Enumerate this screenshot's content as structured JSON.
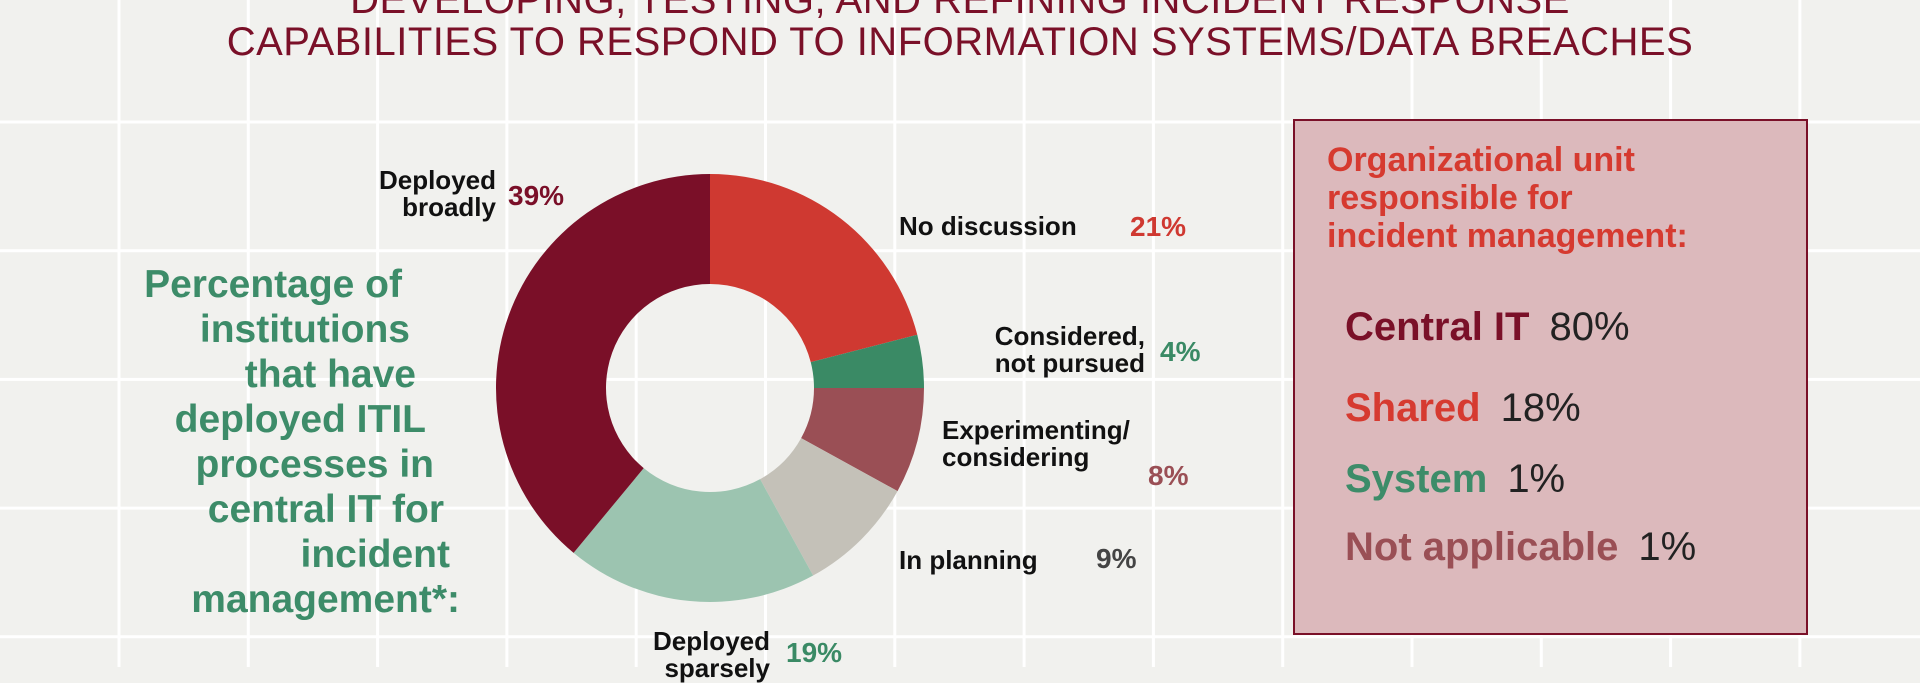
{
  "title": {
    "line1": "DEVELOPING, TESTING, AND REFINING INCIDENT RESPONSE",
    "line2": "CAPABILITIES TO RESPOND TO INFORMATION SYSTEMS/DATA BREACHES"
  },
  "left_caption": [
    "Percentage of",
    "institutions",
    "that have",
    "deployed ITIL",
    "processes in",
    "central IT for",
    "incident",
    "management*:"
  ],
  "chart_data": {
    "type": "pie",
    "donut": true,
    "title": "Percentage of institutions that have deployed ITIL processes in central IT for incident management*:",
    "slices": [
      {
        "label": "No discussion",
        "value": 21,
        "pct_text": "21%",
        "color": "#cf3931"
      },
      {
        "label": "Considered, not pursued",
        "label_lines": [
          "Considered,",
          "not pursued"
        ],
        "value": 4,
        "pct_text": "4%",
        "color": "#3a8a65"
      },
      {
        "label": "Experimenting/considering",
        "label_lines": [
          "Experimenting/",
          "considering"
        ],
        "value": 8,
        "pct_text": "8%",
        "color": "#9a4f55"
      },
      {
        "label": "In planning",
        "value": 9,
        "pct_text": "9%",
        "color": "#c4c1b8"
      },
      {
        "label": "Deployed sparsely",
        "label_lines": [
          "Deployed",
          "sparsely"
        ],
        "value": 19,
        "pct_text": "19%",
        "color": "#9cc4b0"
      },
      {
        "label": "Deployed broadly",
        "label_lines": [
          "Deployed",
          "broadly"
        ],
        "value": 39,
        "pct_text": "39%",
        "color": "#7a0f28"
      }
    ]
  },
  "unit_box": {
    "heading": [
      "Organizational unit",
      "responsible for",
      "incident management:"
    ],
    "rows": [
      {
        "label": "Central IT",
        "value": "80%",
        "color": "#7a1028"
      },
      {
        "label": "Shared",
        "value": "18%",
        "color": "#d63a30"
      },
      {
        "label": "System",
        "value": "1%",
        "color": "#3d8c69"
      },
      {
        "label": "Not applicable",
        "value": "1%",
        "color": "#9a4f55"
      }
    ]
  }
}
